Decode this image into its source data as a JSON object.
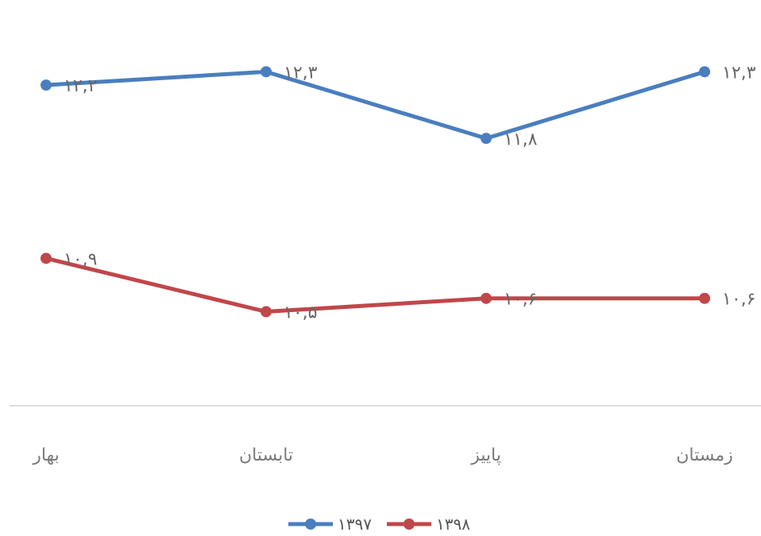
{
  "chart_data": {
    "type": "line",
    "categories": [
      "بهار",
      "تابستان",
      "پاییز",
      "زمستان"
    ],
    "series": [
      {
        "name": "۱۳۹۷",
        "color": "#4a7ebf",
        "values": [
          12.2,
          12.3,
          11.8,
          12.3
        ],
        "labels": [
          "۱۲,۲",
          "۱۲,۳",
          "۱۱,۸",
          "۱۲,۳"
        ]
      },
      {
        "name": "۱۳۹۸",
        "color": "#c0474a",
        "values": [
          10.9,
          10.5,
          10.6,
          10.6
        ],
        "labels": [
          "۱۰,۹",
          "۱۰,۵",
          "۱۰,۶",
          "۱۰,۶"
        ]
      }
    ],
    "ylim": [
      9.8,
      12.6
    ],
    "grid": false,
    "legend": "bottom-center"
  }
}
